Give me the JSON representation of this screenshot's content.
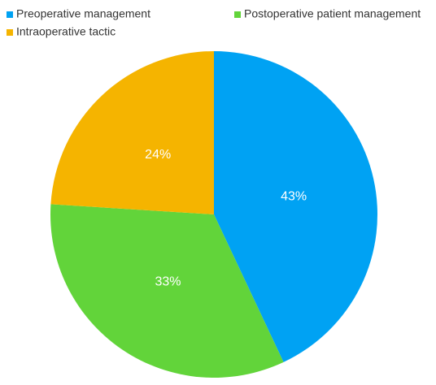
{
  "chart_data": {
    "type": "pie",
    "categories": [
      "Preoperative management",
      "Postoperative patient management",
      "Intraoperative tactic"
    ],
    "values": [
      43,
      33,
      24
    ],
    "value_labels": [
      "43%",
      "33%",
      "24%"
    ],
    "colors": [
      "#00a2f3",
      "#62d43a",
      "#f5b400"
    ],
    "legend": "top"
  }
}
